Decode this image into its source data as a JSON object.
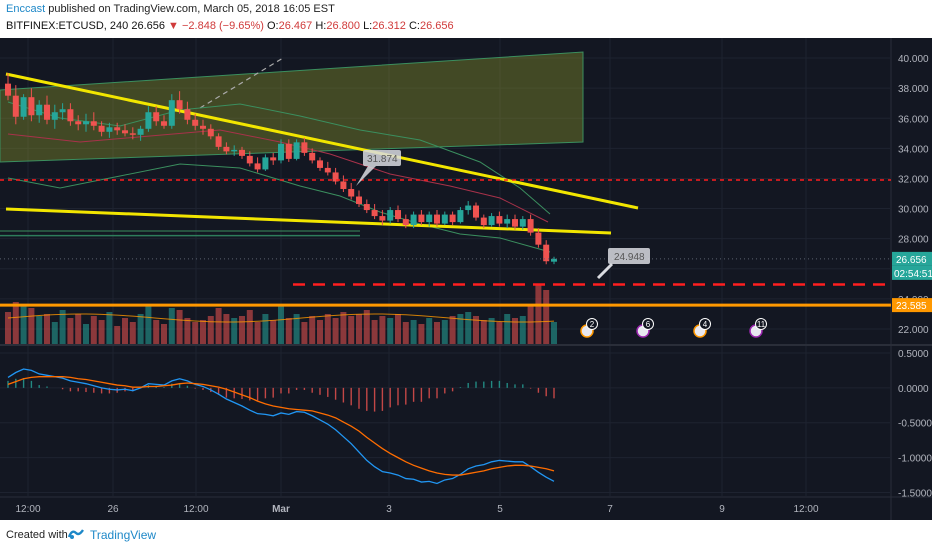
{
  "header": {
    "author": "Enccast",
    "published_text": "published on TradingView.com, March 05, 2018 16:05 EST",
    "symbol": "BITFINEX:ETCUSD, 240",
    "last": "26.656",
    "change": "▼ −2.848 (−9.65%)",
    "ohlc_open_label": "O:",
    "ohlc_open": "26.467",
    "ohlc_high_label": "H:",
    "ohlc_high": "26.800",
    "ohlc_low_label": "L:",
    "ohlc_low": "26.312",
    "ohlc_close_label": "C:",
    "ohlc_close": "26.656"
  },
  "footer": {
    "created_with": "Created with",
    "brand": "TradingView"
  },
  "colors": {
    "background": "#131722",
    "up": "#26a69a",
    "down": "#ef5350",
    "trendline": "#f2e600",
    "support": "#ff9800",
    "resistance_dash": "#ff1f1f",
    "macd": "#2196f3",
    "signal": "#ff6d00"
  },
  "chart_data": [
    {
      "type": "candlestick",
      "title": "BITFINEX:ETCUSD, 240",
      "x_tick_labels": [
        "12:00",
        "26",
        "12:00",
        "Mar",
        "3",
        "5",
        "7",
        "9",
        "12:00"
      ],
      "y_ticks": [
        22,
        24,
        26,
        28,
        30,
        32,
        34,
        36,
        38,
        40
      ],
      "y_tick_labels": [
        "22.000",
        "24.000",
        "26.000",
        "28.000",
        "30.000",
        "32.000",
        "34.000",
        "36.000",
        "38.000",
        "40.000"
      ],
      "ylim": [
        21,
        41.2
      ],
      "last_price_label": "26.656",
      "countdown_label": "02:54:51",
      "support_label": "23.585",
      "annotations": [
        "31.874",
        "24.948"
      ],
      "candles": [
        [
          38.3,
          39.0,
          37.2,
          37.5
        ],
        [
          37.5,
          38.2,
          35.6,
          36.1
        ],
        [
          36.1,
          37.6,
          35.9,
          37.4
        ],
        [
          37.4,
          38.0,
          35.8,
          36.2
        ],
        [
          36.2,
          37.2,
          35.7,
          36.9
        ],
        [
          36.9,
          37.5,
          35.6,
          35.9
        ],
        [
          35.9,
          36.9,
          35.3,
          36.4
        ],
        [
          36.4,
          37.0,
          35.9,
          36.6
        ],
        [
          36.6,
          37.0,
          35.5,
          35.8
        ],
        [
          35.8,
          36.2,
          35.2,
          35.6
        ],
        [
          35.6,
          36.3,
          35.1,
          35.8
        ],
        [
          35.8,
          36.4,
          35.2,
          35.5
        ],
        [
          35.5,
          35.8,
          34.8,
          35.1
        ],
        [
          35.1,
          35.7,
          34.7,
          35.4
        ],
        [
          35.4,
          35.7,
          34.9,
          35.2
        ],
        [
          35.2,
          35.6,
          34.8,
          35.0
        ],
        [
          35.0,
          35.4,
          34.6,
          34.9
        ],
        [
          34.9,
          35.5,
          34.5,
          35.3
        ],
        [
          35.3,
          36.8,
          35.1,
          36.4
        ],
        [
          36.4,
          36.8,
          35.5,
          35.8
        ],
        [
          35.8,
          36.2,
          35.3,
          35.5
        ],
        [
          35.5,
          37.6,
          35.3,
          37.2
        ],
        [
          37.2,
          37.8,
          36.3,
          36.6
        ],
        [
          36.6,
          37.1,
          35.6,
          35.9
        ],
        [
          35.9,
          36.3,
          35.2,
          35.5
        ],
        [
          35.5,
          35.9,
          34.9,
          35.3
        ],
        [
          35.3,
          35.6,
          34.6,
          34.8
        ],
        [
          34.8,
          35.0,
          33.9,
          34.1
        ],
        [
          34.1,
          34.4,
          33.6,
          33.8
        ],
        [
          33.8,
          34.2,
          33.5,
          33.9
        ],
        [
          33.9,
          34.1,
          33.3,
          33.5
        ],
        [
          33.5,
          33.8,
          32.8,
          33.0
        ],
        [
          33.0,
          33.4,
          32.4,
          32.6
        ],
        [
          32.6,
          33.6,
          32.5,
          33.4
        ],
        [
          33.4,
          33.7,
          32.9,
          33.2
        ],
        [
          33.2,
          34.6,
          33.0,
          34.3
        ],
        [
          34.3,
          34.6,
          33.1,
          33.3
        ],
        [
          33.3,
          34.6,
          33.2,
          34.4
        ],
        [
          34.4,
          34.7,
          33.5,
          33.7
        ],
        [
          33.7,
          34.0,
          33.0,
          33.2
        ],
        [
          33.2,
          33.4,
          32.5,
          32.7
        ],
        [
          32.7,
          33.1,
          32.2,
          32.4
        ],
        [
          32.4,
          32.7,
          31.6,
          31.8
        ],
        [
          31.8,
          32.2,
          31.1,
          31.3
        ],
        [
          31.3,
          31.7,
          30.6,
          30.8
        ],
        [
          30.8,
          31.2,
          30.1,
          30.3
        ],
        [
          30.3,
          30.6,
          29.7,
          29.9
        ],
        [
          29.9,
          30.3,
          29.3,
          29.5
        ],
        [
          29.5,
          29.9,
          28.9,
          29.2
        ],
        [
          29.2,
          30.1,
          29.0,
          29.9
        ],
        [
          29.9,
          30.2,
          29.1,
          29.3
        ],
        [
          29.3,
          29.6,
          28.7,
          28.9
        ],
        [
          28.9,
          29.8,
          28.7,
          29.6
        ],
        [
          29.6,
          29.9,
          28.9,
          29.1
        ],
        [
          29.1,
          29.8,
          28.8,
          29.6
        ],
        [
          29.6,
          29.9,
          28.8,
          29.0
        ],
        [
          29.0,
          29.8,
          28.9,
          29.6
        ],
        [
          29.6,
          29.8,
          28.9,
          29.1
        ],
        [
          29.1,
          30.1,
          29.0,
          29.9
        ],
        [
          29.9,
          30.5,
          29.6,
          30.2
        ],
        [
          30.2,
          30.4,
          29.2,
          29.4
        ],
        [
          29.4,
          29.6,
          28.7,
          28.9
        ],
        [
          28.9,
          29.7,
          28.8,
          29.5
        ],
        [
          29.5,
          29.8,
          28.8,
          29.0
        ],
        [
          29.0,
          29.6,
          28.7,
          29.3
        ],
        [
          29.3,
          29.6,
          28.6,
          28.8
        ],
        [
          28.8,
          29.5,
          28.6,
          29.3
        ],
        [
          29.3,
          29.6,
          28.2,
          28.4
        ],
        [
          28.4,
          28.7,
          27.4,
          27.6
        ],
        [
          27.6,
          27.9,
          26.3,
          26.5
        ],
        [
          26.47,
          26.8,
          26.31,
          26.66
        ]
      ],
      "horizontal_levels": [
        {
          "name": "resistance-dashed",
          "value": 31.9,
          "style": "dashed",
          "color": "#ff1f1f"
        },
        {
          "name": "lower-dashed",
          "value": 24.95,
          "style": "dashed",
          "color": "#ff1f1f"
        },
        {
          "name": "support",
          "value": 23.585,
          "style": "solid",
          "color": "#ff9800"
        },
        {
          "name": "green-level",
          "value": 28.2,
          "style": "solid",
          "color": "#2e7d5b"
        }
      ]
    },
    {
      "type": "line",
      "name": "MACD",
      "y_ticks": [
        0.5,
        0,
        -0.5,
        -1,
        -1.5
      ],
      "y_tick_labels": [
        "0.5000",
        "0.0000",
        "-0.5000",
        "-1.0000",
        "-1.5000"
      ],
      "ylim": [
        -1.55,
        0.6
      ],
      "macd": [
        0.15,
        0.22,
        0.27,
        0.25,
        0.2,
        0.18,
        0.16,
        0.14,
        0.1,
        0.08,
        0.06,
        0.03,
        0.0,
        -0.02,
        -0.03,
        -0.02,
        -0.04,
        0.0,
        0.06,
        0.05,
        0.04,
        0.1,
        0.13,
        0.1,
        0.05,
        0.02,
        -0.03,
        -0.09,
        -0.16,
        -0.21,
        -0.26,
        -0.32,
        -0.37,
        -0.38,
        -0.4,
        -0.36,
        -0.38,
        -0.34,
        -0.35,
        -0.4,
        -0.46,
        -0.52,
        -0.6,
        -0.7,
        -0.8,
        -0.92,
        -1.04,
        -1.13,
        -1.2,
        -1.22,
        -1.25,
        -1.3,
        -1.31,
        -1.35,
        -1.34,
        -1.37,
        -1.32,
        -1.3,
        -1.24,
        -1.16,
        -1.12,
        -1.1,
        -1.06,
        -1.04,
        -1.05,
        -1.06,
        -1.06,
        -1.13,
        -1.21,
        -1.28,
        -1.34
      ],
      "signal": [
        0.05,
        0.09,
        0.13,
        0.15,
        0.16,
        0.16,
        0.16,
        0.16,
        0.15,
        0.13,
        0.12,
        0.1,
        0.08,
        0.06,
        0.04,
        0.03,
        0.01,
        0.01,
        0.02,
        0.02,
        0.03,
        0.04,
        0.06,
        0.07,
        0.06,
        0.05,
        0.03,
        0.01,
        -0.02,
        -0.06,
        -0.1,
        -0.14,
        -0.19,
        -0.23,
        -0.26,
        -0.28,
        -0.3,
        -0.31,
        -0.32,
        -0.33,
        -0.36,
        -0.39,
        -0.43,
        -0.49,
        -0.55,
        -0.62,
        -0.71,
        -0.79,
        -0.87,
        -0.94,
        -1.0,
        -1.06,
        -1.11,
        -1.15,
        -1.19,
        -1.22,
        -1.24,
        -1.25,
        -1.25,
        -1.23,
        -1.21,
        -1.19,
        -1.16,
        -1.14,
        -1.12,
        -1.11,
        -1.11,
        -1.12,
        -1.14,
        -1.16,
        -1.19
      ]
    }
  ],
  "volume_labels": {
    "events": [
      "2",
      "6",
      "4",
      "11"
    ]
  }
}
